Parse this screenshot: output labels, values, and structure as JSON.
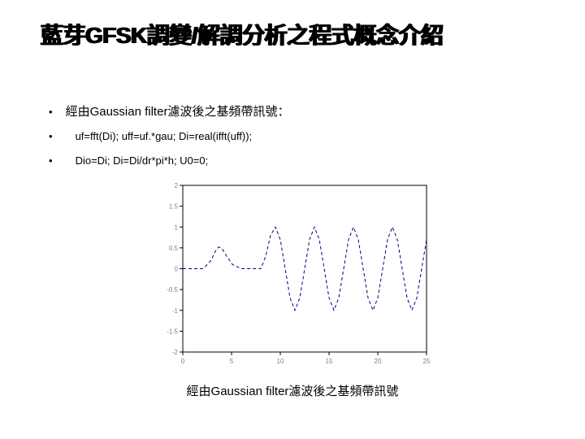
{
  "title": "藍芽GFSK調變/解調分析之程式概念介紹",
  "bullets": {
    "item1": "經由Gaussian filter濾波後之基頻帶訊號：",
    "item2": "uf=fft(Di); uff=uf.*gau; Di=real(ifft(uff));",
    "item3": "Dio=Di; Di=Di/dr*pi*h; U0=0;"
  },
  "chart": {
    "type": "line",
    "xlim": [
      0,
      25
    ],
    "ylim": [
      -2,
      2
    ],
    "xticks": [
      0,
      5,
      10,
      15,
      20,
      25
    ],
    "yticks": [
      -2,
      -1.5,
      -1,
      -0.5,
      0,
      0.5,
      1,
      1.5,
      2
    ],
    "line_color": "#000080",
    "line_style": "dashed",
    "line_width": 1,
    "background_color": "#ffffff",
    "axis_color": "#000000",
    "tick_color": "#000000",
    "tick_fontsize": 8,
    "label_color": "#808080",
    "data_x": [
      0,
      1,
      2,
      2.3,
      2.6,
      2.9,
      3.1,
      3.3,
      3.5,
      3.7,
      3.9,
      4.1,
      4.3,
      4.5,
      4.8,
      5.1,
      6,
      7,
      8,
      8.5,
      9,
      9.5,
      10,
      10.5,
      11,
      11.5,
      12,
      12.5,
      13,
      13.5,
      14,
      14.5,
      15,
      15.5,
      16,
      16.5,
      17,
      17.5,
      18,
      18.5,
      19,
      19.5,
      20,
      20.5,
      21,
      21.5,
      22,
      22.5,
      23,
      23.5,
      24,
      24.5,
      25
    ],
    "data_y": [
      0,
      0,
      0,
      0.05,
      0.12,
      0.2,
      0.3,
      0.4,
      0.48,
      0.52,
      0.5,
      0.45,
      0.38,
      0.3,
      0.2,
      0.1,
      0,
      0,
      0,
      0.3,
      0.8,
      1,
      0.7,
      0,
      -0.7,
      -1,
      -0.7,
      0,
      0.7,
      1,
      0.7,
      0,
      -0.7,
      -1,
      -0.7,
      0,
      0.7,
      1,
      0.7,
      0,
      -0.7,
      -1,
      -0.7,
      0,
      0.7,
      1,
      0.7,
      0,
      -0.7,
      -1,
      -0.7,
      0,
      0.7
    ]
  },
  "caption": "經由Gaussian filter濾波後之基頻帶訊號"
}
